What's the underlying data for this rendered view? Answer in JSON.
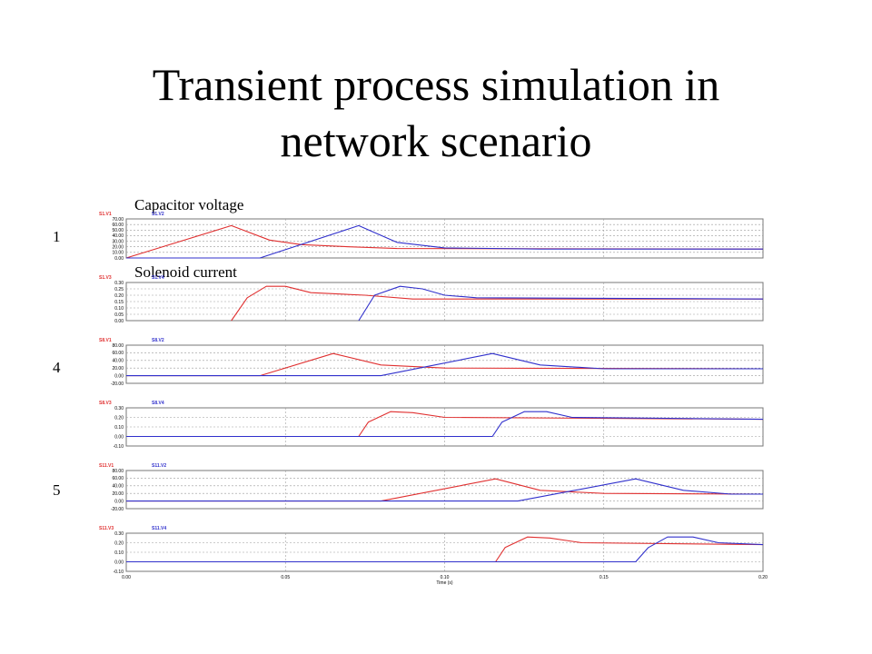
{
  "title_line1": "Transient process simulation in",
  "title_line2": "network scenario",
  "captions": {
    "capacitor": "Capacitor voltage",
    "solenoid": "Solenoid current"
  },
  "scenario_labels": [
    "1",
    "4",
    "5"
  ],
  "colors": {
    "red": "#e03030",
    "blue": "#3030cc",
    "grid": "#9a9a9a",
    "frame": "#777777"
  },
  "chart_data": [
    {
      "type": "line",
      "ylim": [
        0,
        70
      ],
      "yticks": [
        "70.00",
        "60.00",
        "50.00",
        "40.00",
        "30.00",
        "20.00",
        "10.00",
        "0.00"
      ],
      "legend": [
        "S1.V1",
        "S1.V2"
      ],
      "series": [
        {
          "name": "S1.V1",
          "color": "red",
          "x": [
            0,
            0.033,
            0.045,
            0.055,
            0.07,
            0.085,
            0.2
          ],
          "y": [
            0,
            58,
            32,
            24,
            20,
            17,
            16
          ]
        },
        {
          "name": "S1.V2",
          "color": "blue",
          "x": [
            0,
            0.042,
            0.073,
            0.085,
            0.1,
            0.13,
            0.2
          ],
          "y": [
            0,
            0,
            58,
            28,
            18,
            16,
            16
          ]
        }
      ]
    },
    {
      "type": "line",
      "ylim": [
        0,
        0.3
      ],
      "yticks": [
        "0.30",
        "0.25",
        "0.20",
        "0.15",
        "0.10",
        "0.05",
        "0.00"
      ],
      "legend": [
        "S1.V3",
        "S1.V4"
      ],
      "series": [
        {
          "name": "S1.V3",
          "color": "red",
          "x": [
            0.033,
            0.038,
            0.044,
            0.05,
            0.058,
            0.075,
            0.09,
            0.2
          ],
          "y": [
            0,
            0.18,
            0.27,
            0.27,
            0.22,
            0.2,
            0.17,
            0.17
          ]
        },
        {
          "name": "S1.V4",
          "color": "blue",
          "x": [
            0.073,
            0.078,
            0.086,
            0.093,
            0.1,
            0.11,
            0.2
          ],
          "y": [
            0,
            0.2,
            0.27,
            0.25,
            0.2,
            0.18,
            0.17
          ]
        }
      ]
    },
    {
      "type": "line",
      "ylim": [
        -20,
        80
      ],
      "yticks": [
        "80.00",
        "60.00",
        "40.00",
        "20.00",
        "0.00",
        "-20.00"
      ],
      "legend": [
        "S8.V1",
        "S8.V2"
      ],
      "series": [
        {
          "name": "S8.V1",
          "color": "red",
          "x": [
            0,
            0.042,
            0.065,
            0.08,
            0.1,
            0.2
          ],
          "y": [
            0,
            0,
            58,
            28,
            20,
            18
          ]
        },
        {
          "name": "S8.V2",
          "color": "blue",
          "x": [
            0,
            0.08,
            0.115,
            0.13,
            0.15,
            0.2
          ],
          "y": [
            0,
            0,
            58,
            28,
            18,
            18
          ]
        }
      ]
    },
    {
      "type": "line",
      "ylim": [
        -0.1,
        0.3
      ],
      "yticks": [
        "0.30",
        "0.20",
        "0.10",
        "0.00",
        "-0.10"
      ],
      "legend": [
        "S8.V3",
        "S8.V4"
      ],
      "series": [
        {
          "name": "S8.V3",
          "color": "red",
          "x": [
            0,
            0.073,
            0.076,
            0.083,
            0.09,
            0.1,
            0.2
          ],
          "y": [
            0,
            0,
            0.15,
            0.26,
            0.25,
            0.2,
            0.18
          ]
        },
        {
          "name": "S8.V4",
          "color": "blue",
          "x": [
            0,
            0.115,
            0.118,
            0.125,
            0.132,
            0.14,
            0.2
          ],
          "y": [
            0,
            0,
            0.15,
            0.26,
            0.26,
            0.2,
            0.18
          ]
        }
      ]
    },
    {
      "type": "line",
      "ylim": [
        -20,
        80
      ],
      "yticks": [
        "80.00",
        "60.00",
        "40.00",
        "20.00",
        "0.00",
        "-20.00"
      ],
      "legend": [
        "S11.V1",
        "S11.V2"
      ],
      "series": [
        {
          "name": "S11.V1",
          "color": "red",
          "x": [
            0,
            0.08,
            0.116,
            0.13,
            0.15,
            0.2
          ],
          "y": [
            0,
            0,
            58,
            28,
            20,
            18
          ]
        },
        {
          "name": "S11.V2",
          "color": "blue",
          "x": [
            0,
            0.123,
            0.16,
            0.175,
            0.19,
            0.2
          ],
          "y": [
            0,
            0,
            58,
            28,
            18,
            18
          ]
        }
      ]
    },
    {
      "type": "line",
      "ylim": [
        -0.1,
        0.3
      ],
      "yticks": [
        "0.30",
        "0.20",
        "0.10",
        "0.00",
        "-0.10"
      ],
      "legend": [
        "S11.V3",
        "S11.V4"
      ],
      "series": [
        {
          "name": "S11.V3",
          "color": "red",
          "x": [
            0,
            0.116,
            0.119,
            0.126,
            0.133,
            0.143,
            0.2
          ],
          "y": [
            0,
            0,
            0.15,
            0.26,
            0.25,
            0.2,
            0.18
          ]
        },
        {
          "name": "S11.V4",
          "color": "blue",
          "x": [
            0,
            0.16,
            0.164,
            0.17,
            0.178,
            0.186,
            0.2
          ],
          "y": [
            0,
            0,
            0.15,
            0.26,
            0.26,
            0.2,
            0.18
          ]
        }
      ]
    }
  ],
  "x_axis": {
    "xlim": [
      0,
      0.2
    ],
    "ticks": [
      "0.00",
      "0.05",
      "0.10",
      "0.15",
      "0.20"
    ],
    "label": "Time (s)"
  }
}
